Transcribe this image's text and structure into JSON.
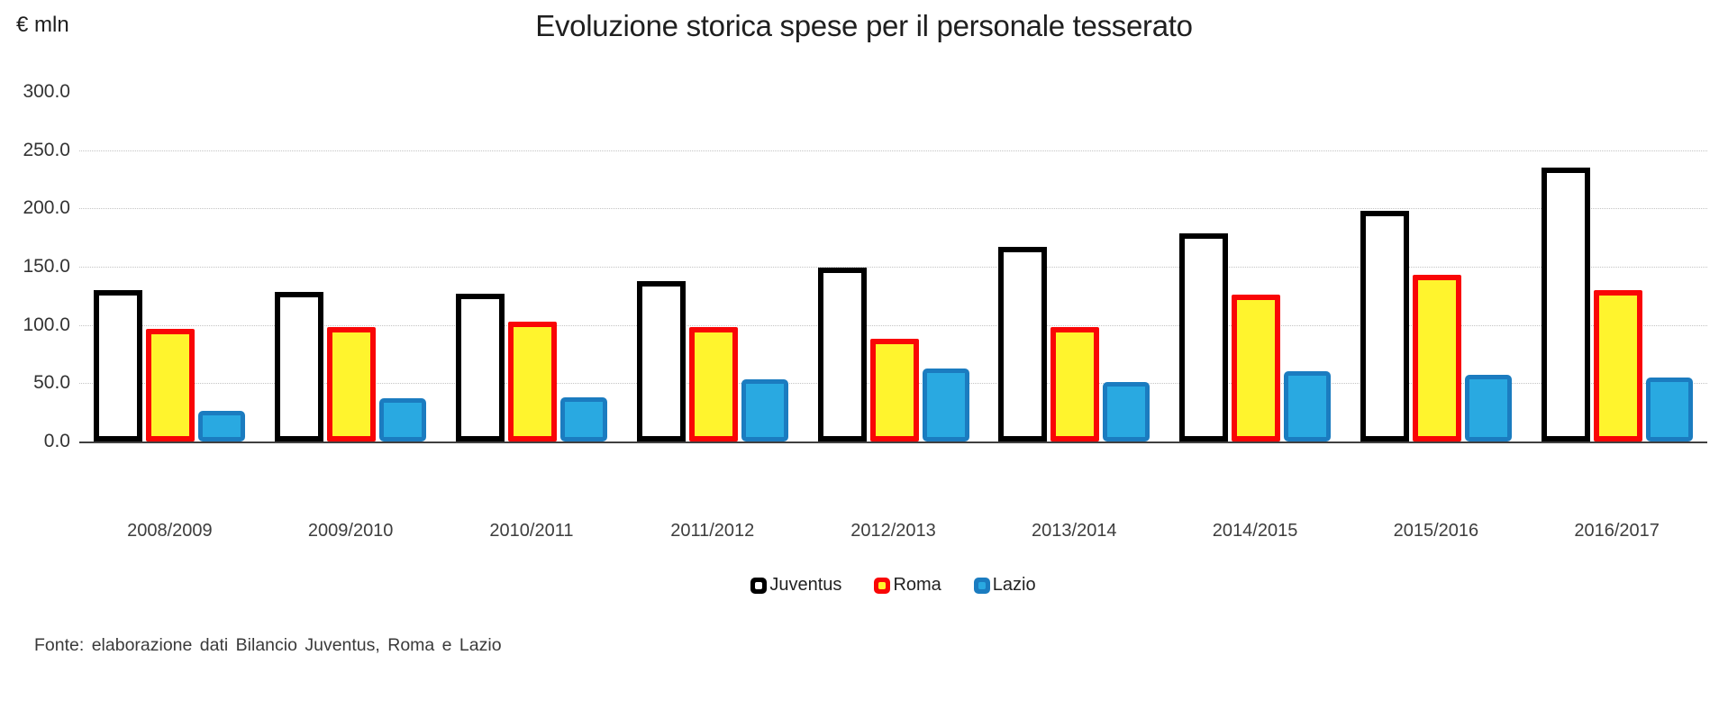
{
  "title": "Evoluzione storica spese per il personale tesserato",
  "unit_label": "€ mln",
  "footer": "Fonte: elaborazione dati Bilancio Juventus, Roma e Lazio",
  "colors": {
    "juventus_border": "#000000",
    "juventus_fill": "#ffffff",
    "roma_border": "#f90606",
    "roma_fill": "#fff42d",
    "lazio_border": "#1b7cc0",
    "lazio_fill": "#29a9e1",
    "gridline": "#c4c4c4",
    "axis_line": "#404040"
  },
  "chart_data": {
    "type": "bar",
    "title": "Evoluzione storica spese per il personale tesserato",
    "xlabel": "",
    "ylabel": "€ mln",
    "ylim": [
      0,
      300
    ],
    "ytick_step": 50,
    "ytick_labels": [
      "0.0",
      "50.0",
      "100.0",
      "150.0",
      "200.0",
      "250.0",
      "300.0"
    ],
    "grid": "horizontal dotted lines at 50-250, solid axis at 0, none at 300",
    "legend_position": "bottom",
    "categories": [
      "2008/2009",
      "2009/2010",
      "2010/2011",
      "2011/2012",
      "2012/2013",
      "2013/2014",
      "2014/2015",
      "2015/2016",
      "2016/2017"
    ],
    "series": [
      {
        "name": "Juventus",
        "fill": "#ffffff",
        "border": "#000000",
        "values": [
          130,
          128,
          127,
          138,
          149,
          167,
          179,
          198,
          235
        ]
      },
      {
        "name": "Roma",
        "fill": "#fff42d",
        "border": "#f90606",
        "values": [
          97,
          98,
          103,
          98,
          88,
          98,
          126,
          143,
          130
        ]
      },
      {
        "name": "Lazio",
        "fill": "#29a9e1",
        "border": "#1b7cc0",
        "values": [
          26,
          37,
          38,
          53,
          63,
          51,
          60,
          57,
          55
        ]
      }
    ]
  }
}
